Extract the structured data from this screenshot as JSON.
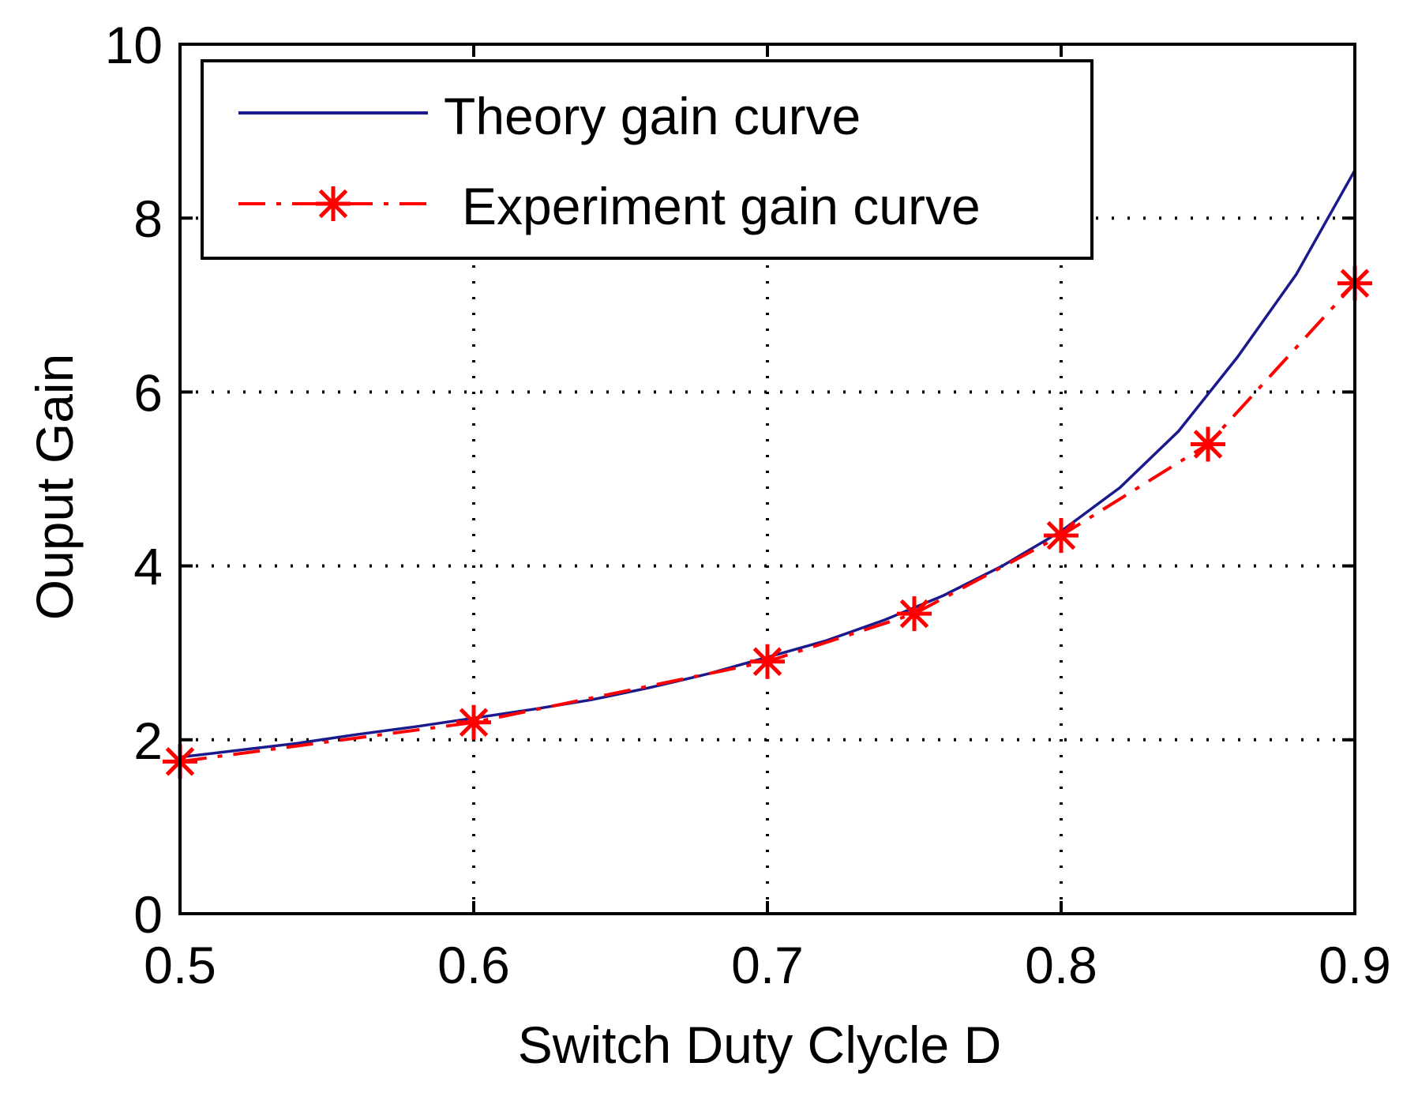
{
  "chart_data": {
    "type": "line",
    "xlabel": "Switch Duty Clycle D",
    "ylabel": "Ouput Gain",
    "xlim": [
      0.5,
      0.9
    ],
    "ylim": [
      0,
      10
    ],
    "xticks": [
      0.5,
      0.6,
      0.7,
      0.8,
      0.9
    ],
    "xtick_labels": [
      "0.5",
      "0.6",
      "0.7",
      "0.8",
      "0.9"
    ],
    "yticks": [
      0,
      2,
      4,
      6,
      8,
      10
    ],
    "ytick_labels": [
      "0",
      "2",
      "4",
      "6",
      "8",
      "10"
    ],
    "grid": true,
    "legend_position": "top-left",
    "series": [
      {
        "name": "Theory gain curve",
        "color": "#1a1a8c",
        "style": "solid",
        "x": [
          0.5,
          0.52,
          0.54,
          0.56,
          0.58,
          0.6,
          0.62,
          0.64,
          0.66,
          0.68,
          0.7,
          0.72,
          0.74,
          0.76,
          0.78,
          0.8,
          0.82,
          0.84,
          0.86,
          0.88,
          0.9
        ],
        "y": [
          1.8,
          1.88,
          1.96,
          2.06,
          2.15,
          2.25,
          2.35,
          2.46,
          2.6,
          2.76,
          2.95,
          3.14,
          3.38,
          3.66,
          4.0,
          4.4,
          4.9,
          5.55,
          6.4,
          7.35,
          8.55
        ]
      },
      {
        "name": "Experiment gain curve",
        "color": "#ff0000",
        "style": "dashdot",
        "marker": "star",
        "x": [
          0.5,
          0.6,
          0.7,
          0.75,
          0.8,
          0.85,
          0.9
        ],
        "y": [
          1.75,
          2.2,
          2.9,
          3.45,
          4.35,
          5.4,
          7.25
        ]
      }
    ]
  }
}
